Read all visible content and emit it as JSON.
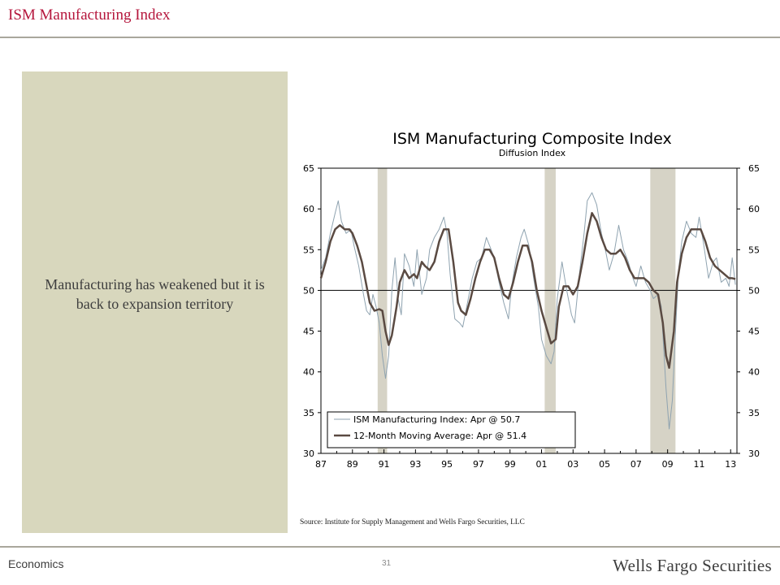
{
  "slide": {
    "title": "ISM Manufacturing Index",
    "side_text": "Manufacturing has weakened but it is back to expansion territory",
    "source": "Source:  Institute for Supply Management and Wells Fargo Securities, LLC",
    "footer_left": "Economics",
    "page_number": "31",
    "brand": "Wells Fargo Securities"
  },
  "colors": {
    "title": "#b5163c",
    "panel": "#d8d7bd",
    "index_line": "#8fa3b0",
    "average_line": "#5a4a42",
    "recession": "#d6d3c6"
  },
  "chart_data": {
    "type": "line",
    "title": "ISM Manufacturing Composite Index",
    "subtitle": "Diffusion Index",
    "x_tick_labels": [
      "87",
      "89",
      "91",
      "93",
      "95",
      "97",
      "99",
      "01",
      "03",
      "05",
      "07",
      "09",
      "11",
      "13"
    ],
    "x_tick_years": [
      1987,
      1989,
      1991,
      1993,
      1995,
      1997,
      1999,
      2001,
      2003,
      2005,
      2007,
      2009,
      2011,
      2013
    ],
    "xlim": [
      1987,
      2013.4
    ],
    "ylim": [
      30,
      65
    ],
    "y_ticks": [
      30,
      35,
      40,
      45,
      50,
      55,
      60,
      65
    ],
    "y_tick_labels": [
      "30",
      "35",
      "40",
      "45",
      "50",
      "55",
      "60",
      "65"
    ],
    "reference_line": 50,
    "recessions": [
      [
        1990.6,
        1991.2
      ],
      [
        2001.2,
        2001.9
      ],
      [
        2007.9,
        2009.5
      ]
    ],
    "legend": [
      "ISM Manufacturing Index: Apr @ 50.7",
      "12-Month Moving Average: Apr @ 51.4"
    ],
    "series": [
      {
        "name": "ISM Manufacturing Index: Apr @ 50.7",
        "points": [
          [
            1987.0,
            52.5
          ],
          [
            1987.3,
            54.0
          ],
          [
            1987.6,
            57.0
          ],
          [
            1987.9,
            59.5
          ],
          [
            1988.1,
            61.0
          ],
          [
            1988.3,
            58.5
          ],
          [
            1988.6,
            57.0
          ],
          [
            1988.9,
            57.5
          ],
          [
            1989.1,
            55.5
          ],
          [
            1989.4,
            53.0
          ],
          [
            1989.7,
            49.5
          ],
          [
            1989.9,
            47.5
          ],
          [
            1990.1,
            47.0
          ],
          [
            1990.3,
            49.5
          ],
          [
            1990.5,
            48.0
          ],
          [
            1990.7,
            46.0
          ],
          [
            1990.9,
            42.0
          ],
          [
            1991.1,
            39.2
          ],
          [
            1991.3,
            42.0
          ],
          [
            1991.5,
            50.0
          ],
          [
            1991.7,
            54.0
          ],
          [
            1991.9,
            49.0
          ],
          [
            1992.1,
            47.0
          ],
          [
            1992.3,
            54.5
          ],
          [
            1992.6,
            53.0
          ],
          [
            1992.9,
            50.5
          ],
          [
            1993.1,
            55.0
          ],
          [
            1993.4,
            49.5
          ],
          [
            1993.7,
            51.5
          ],
          [
            1993.9,
            55.0
          ],
          [
            1994.2,
            56.5
          ],
          [
            1994.5,
            57.5
          ],
          [
            1994.8,
            59.0
          ],
          [
            1995.0,
            57.0
          ],
          [
            1995.2,
            52.0
          ],
          [
            1995.5,
            46.5
          ],
          [
            1995.8,
            46.0
          ],
          [
            1996.0,
            45.5
          ],
          [
            1996.3,
            48.5
          ],
          [
            1996.6,
            51.5
          ],
          [
            1996.9,
            53.5
          ],
          [
            1997.2,
            54.0
          ],
          [
            1997.5,
            56.5
          ],
          [
            1997.8,
            55.0
          ],
          [
            1998.0,
            54.0
          ],
          [
            1998.3,
            51.0
          ],
          [
            1998.6,
            48.5
          ],
          [
            1998.9,
            46.5
          ],
          [
            1999.1,
            50.5
          ],
          [
            1999.4,
            54.0
          ],
          [
            1999.7,
            56.5
          ],
          [
            1999.9,
            57.5
          ],
          [
            2000.2,
            55.5
          ],
          [
            2000.5,
            51.5
          ],
          [
            2000.8,
            48.0
          ],
          [
            2001.0,
            44.0
          ],
          [
            2001.3,
            42.0
          ],
          [
            2001.6,
            41.0
          ],
          [
            2001.8,
            42.5
          ],
          [
            2002.0,
            49.0
          ],
          [
            2002.3,
            53.5
          ],
          [
            2002.6,
            50.0
          ],
          [
            2002.9,
            47.0
          ],
          [
            2003.1,
            46.0
          ],
          [
            2003.4,
            52.0
          ],
          [
            2003.7,
            57.0
          ],
          [
            2003.9,
            61.0
          ],
          [
            2004.2,
            62.0
          ],
          [
            2004.5,
            60.5
          ],
          [
            2004.8,
            57.0
          ],
          [
            2005.0,
            55.5
          ],
          [
            2005.3,
            52.5
          ],
          [
            2005.6,
            54.5
          ],
          [
            2005.9,
            58.0
          ],
          [
            2006.2,
            55.0
          ],
          [
            2006.5,
            53.5
          ],
          [
            2006.8,
            51.5
          ],
          [
            2007.0,
            50.5
          ],
          [
            2007.3,
            53.0
          ],
          [
            2007.6,
            51.0
          ],
          [
            2007.9,
            50.0
          ],
          [
            2008.1,
            49.0
          ],
          [
            2008.4,
            49.5
          ],
          [
            2008.6,
            48.0
          ],
          [
            2008.9,
            38.0
          ],
          [
            2009.1,
            33.0
          ],
          [
            2009.3,
            36.5
          ],
          [
            2009.5,
            45.0
          ],
          [
            2009.7,
            52.5
          ],
          [
            2009.9,
            56.0
          ],
          [
            2010.2,
            58.5
          ],
          [
            2010.5,
            57.0
          ],
          [
            2010.8,
            56.5
          ],
          [
            2011.0,
            59.0
          ],
          [
            2011.3,
            55.5
          ],
          [
            2011.6,
            51.5
          ],
          [
            2011.9,
            53.5
          ],
          [
            2012.1,
            54.0
          ],
          [
            2012.4,
            51.0
          ],
          [
            2012.7,
            51.5
          ],
          [
            2012.9,
            50.5
          ],
          [
            2013.1,
            54.0
          ],
          [
            2013.3,
            50.7
          ]
        ]
      },
      {
        "name": "12-Month Moving Average: Apr @ 51.4",
        "points": [
          [
            1987.0,
            51.5
          ],
          [
            1987.3,
            53.5
          ],
          [
            1987.6,
            56.0
          ],
          [
            1987.9,
            57.5
          ],
          [
            1988.2,
            58.0
          ],
          [
            1988.5,
            57.5
          ],
          [
            1988.8,
            57.5
          ],
          [
            1989.0,
            57.0
          ],
          [
            1989.3,
            55.5
          ],
          [
            1989.6,
            53.5
          ],
          [
            1989.9,
            50.5
          ],
          [
            1990.1,
            48.5
          ],
          [
            1990.4,
            47.5
          ],
          [
            1990.7,
            47.7
          ],
          [
            1990.9,
            47.5
          ],
          [
            1991.1,
            45.0
          ],
          [
            1991.3,
            43.3
          ],
          [
            1991.5,
            44.5
          ],
          [
            1991.8,
            48.0
          ],
          [
            1992.0,
            51.0
          ],
          [
            1992.3,
            52.5
          ],
          [
            1992.6,
            51.5
          ],
          [
            1992.9,
            52.0
          ],
          [
            1993.1,
            51.5
          ],
          [
            1993.4,
            53.5
          ],
          [
            1993.6,
            53.0
          ],
          [
            1993.9,
            52.5
          ],
          [
            1994.2,
            53.5
          ],
          [
            1994.5,
            56.0
          ],
          [
            1994.8,
            57.5
          ],
          [
            1995.1,
            57.5
          ],
          [
            1995.4,
            53.5
          ],
          [
            1995.7,
            48.5
          ],
          [
            1995.9,
            47.5
          ],
          [
            1996.2,
            47.0
          ],
          [
            1996.5,
            49.0
          ],
          [
            1996.8,
            51.5
          ],
          [
            1997.1,
            53.5
          ],
          [
            1997.4,
            55.0
          ],
          [
            1997.7,
            55.0
          ],
          [
            1998.0,
            54.0
          ],
          [
            1998.3,
            51.5
          ],
          [
            1998.6,
            49.5
          ],
          [
            1998.9,
            49.0
          ],
          [
            1999.2,
            51.0
          ],
          [
            1999.5,
            53.5
          ],
          [
            1999.8,
            55.5
          ],
          [
            2000.1,
            55.5
          ],
          [
            2000.4,
            53.5
          ],
          [
            2000.7,
            50.0
          ],
          [
            2001.0,
            47.5
          ],
          [
            2001.3,
            45.5
          ],
          [
            2001.6,
            43.5
          ],
          [
            2001.9,
            44.0
          ],
          [
            2002.1,
            48.0
          ],
          [
            2002.4,
            50.5
          ],
          [
            2002.7,
            50.5
          ],
          [
            2003.0,
            49.5
          ],
          [
            2003.3,
            50.5
          ],
          [
            2003.6,
            53.5
          ],
          [
            2003.9,
            57.0
          ],
          [
            2004.2,
            59.5
          ],
          [
            2004.5,
            58.5
          ],
          [
            2004.8,
            56.5
          ],
          [
            2005.1,
            55.0
          ],
          [
            2005.4,
            54.5
          ],
          [
            2005.7,
            54.5
          ],
          [
            2006.0,
            55.0
          ],
          [
            2006.3,
            54.0
          ],
          [
            2006.6,
            52.5
          ],
          [
            2006.9,
            51.5
          ],
          [
            2007.2,
            51.5
          ],
          [
            2007.5,
            51.5
          ],
          [
            2007.8,
            51.0
          ],
          [
            2008.1,
            50.0
          ],
          [
            2008.4,
            49.5
          ],
          [
            2008.7,
            46.0
          ],
          [
            2008.9,
            42.0
          ],
          [
            2009.1,
            40.5
          ],
          [
            2009.4,
            45.0
          ],
          [
            2009.6,
            51.0
          ],
          [
            2009.9,
            54.5
          ],
          [
            2010.2,
            56.5
          ],
          [
            2010.5,
            57.5
          ],
          [
            2010.8,
            57.5
          ],
          [
            2011.1,
            57.5
          ],
          [
            2011.4,
            56.0
          ],
          [
            2011.7,
            54.0
          ],
          [
            2012.0,
            53.0
          ],
          [
            2012.3,
            52.5
          ],
          [
            2012.6,
            52.0
          ],
          [
            2012.9,
            51.5
          ],
          [
            2013.1,
            51.5
          ],
          [
            2013.3,
            51.4
          ]
        ]
      }
    ]
  }
}
